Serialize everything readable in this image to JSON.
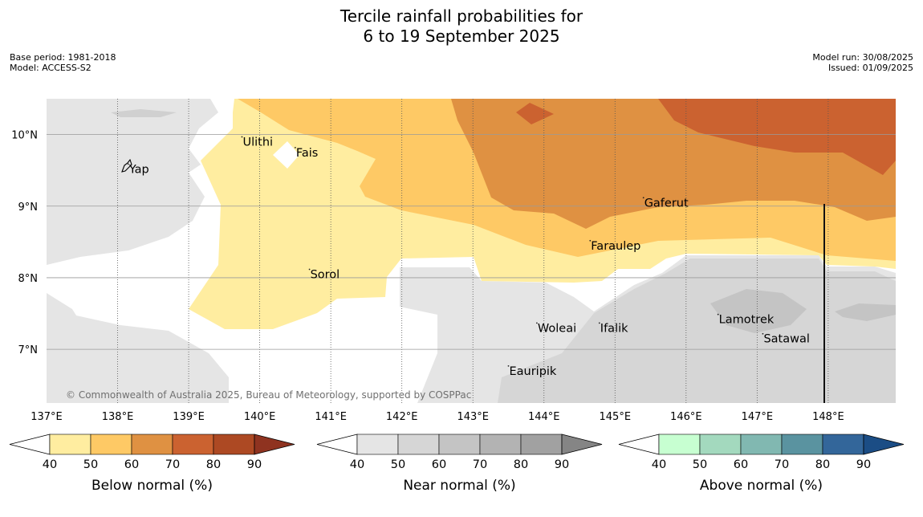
{
  "header": {
    "title_line1": "Tercile rainfall probabilities for",
    "title_line2": "6 to 19 September 2025",
    "base_period": "Base period: 1981-2018",
    "model": "Model: ACCESS-S2",
    "model_run": "Model run: 30/08/2025",
    "issued": "Issued: 01/09/2025"
  },
  "copyright": "© Commonwealth of Australia 2025, Bureau of Meteorology, supported by COSPPac",
  "chart_data": {
    "type": "heatmap",
    "map_extent": {
      "lon": [
        137.0,
        148.95
      ],
      "lat": [
        6.25,
        10.5
      ]
    },
    "x_ticks": [
      "137°E",
      "138°E",
      "139°E",
      "140°E",
      "141°E",
      "142°E",
      "143°E",
      "144°E",
      "145°E",
      "146°E",
      "147°E",
      "148°E"
    ],
    "x_tick_values": [
      137,
      138,
      139,
      140,
      141,
      142,
      143,
      144,
      145,
      146,
      147,
      148
    ],
    "y_ticks": [
      "10°N",
      "9°N",
      "8°N",
      "7°N"
    ],
    "y_tick_values": [
      10,
      9,
      8,
      7
    ],
    "grid": true,
    "places": [
      {
        "name": "Yap",
        "lon": 138.15,
        "lat": 9.52
      },
      {
        "name": "Ulithi",
        "lon": 139.75,
        "lat": 9.9
      },
      {
        "name": "Fais",
        "lon": 140.5,
        "lat": 9.75
      },
      {
        "name": "Gaferut",
        "lon": 145.4,
        "lat": 9.05
      },
      {
        "name": "Faraulep",
        "lon": 144.65,
        "lat": 8.45
      },
      {
        "name": "Sorol",
        "lon": 140.7,
        "lat": 8.05
      },
      {
        "name": "Woleai",
        "lon": 143.9,
        "lat": 7.3
      },
      {
        "name": "Ifalik",
        "lon": 144.78,
        "lat": 7.3
      },
      {
        "name": "Lamotrek",
        "lon": 146.45,
        "lat": 7.42
      },
      {
        "name": "Satawal",
        "lon": 147.08,
        "lat": 7.15
      },
      {
        "name": "Eauripik",
        "lon": 143.5,
        "lat": 6.7
      }
    ],
    "colorbars": [
      {
        "label": "Below normal (%)",
        "ticks": [
          "40",
          "50",
          "60",
          "70",
          "80",
          "90"
        ],
        "colors": [
          "#ffeda0",
          "#fec965",
          "#df9142",
          "#cb6230",
          "#ad4923",
          "#8f3320"
        ]
      },
      {
        "label": "Near normal (%)",
        "ticks": [
          "40",
          "50",
          "60",
          "70",
          "80",
          "90"
        ],
        "colors": [
          "#e5e5e5",
          "#d6d6d6",
          "#c4c4c4",
          "#b3b3b3",
          "#a1a1a1",
          "#858585"
        ]
      },
      {
        "label": "Above normal (%)",
        "ticks": [
          "40",
          "50",
          "60",
          "70",
          "80",
          "90"
        ],
        "colors": [
          "#c7ffd1",
          "#a3d9be",
          "#81b8b1",
          "#5a93a0",
          "#33669a",
          "#1b4d85"
        ]
      }
    ]
  }
}
